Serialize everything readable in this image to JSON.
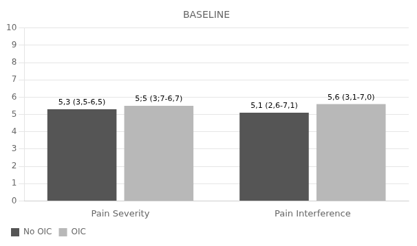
{
  "chart_data": {
    "type": "bar",
    "title": "BASELINE",
    "categories": [
      "Pain Severity",
      "Pain Interference"
    ],
    "series": [
      {
        "name": "No OIC",
        "color": "#555555",
        "values": [
          5.3,
          5.1
        ],
        "value_labels": [
          "5,3 (3,5-6,5)",
          "5,1 (2,6-7,1)"
        ]
      },
      {
        "name": "OIC",
        "color": "#b8b8b8",
        "values": [
          5.5,
          5.6
        ],
        "value_labels": [
          "5;5 (3;7-6,7)",
          "5,6 (3,1-7,0)"
        ]
      }
    ],
    "ylim": [
      0,
      10
    ],
    "yticks": [
      0,
      1,
      2,
      3,
      4,
      5,
      6,
      7,
      8,
      9,
      10
    ],
    "grid": true,
    "legend": "lower left",
    "data_labels": true
  }
}
